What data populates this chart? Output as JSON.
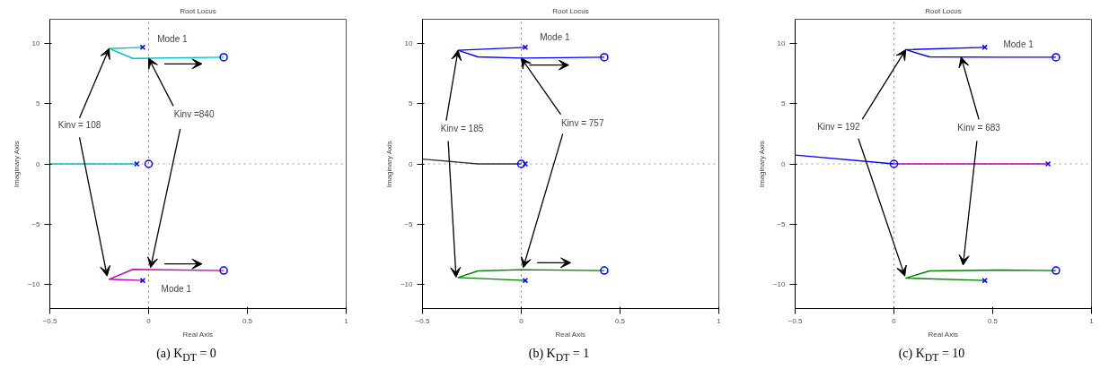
{
  "chart_data": [
    {
      "type": "line",
      "title": "Root Locus",
      "xlabel": "Real Axis",
      "ylabel": "Imaginary Axis",
      "xlim": [
        -0.5,
        1
      ],
      "ylim": [
        -12,
        12
      ],
      "xticks": [
        -0.5,
        0,
        0.5,
        1
      ],
      "yticks": [
        -10,
        -5,
        0,
        5,
        10
      ],
      "grid": false,
      "ref_lines": [
        {
          "axis": "x",
          "value": 0,
          "line_style": "dotted",
          "color": "#7a7a7a"
        },
        {
          "axis": "y",
          "value": 0,
          "line_style": "dotted",
          "color": "#999999"
        }
      ],
      "annotations": [
        "(a) K$_{DT}$ = 0",
        "Mode 1",
        "Mode 1",
        {
          "text": "Kinv = 108",
          "x": -0.2,
          "y": 9.57
        },
        {
          "text": "Kinv =840",
          "x": 0,
          "y": 8.77
        }
      ],
      "series": [
        {
          "color": "#00bfbf",
          "x": [
            -0.03,
            -0.2,
            -0.08,
            0.38
          ],
          "values": [
            9.67,
            9.57,
            8.75,
            8.85
          ]
        },
        {
          "color": "#bf00bf",
          "x": [
            -0.03,
            -0.2,
            -0.08,
            0.38
          ],
          "values": [
            -9.67,
            -9.57,
            -8.75,
            -8.85
          ]
        },
        {
          "color": "#00bfbf",
          "x": [
            -0.5,
            -0.06
          ],
          "values": [
            0,
            0
          ]
        },
        {
          "type": "scatter",
          "marker": "cross",
          "color": "#0000ff",
          "x": [
            -0.03,
            -0.03,
            -0.06
          ],
          "values": [
            9.67,
            -9.67,
            0
          ]
        },
        {
          "type": "scatter",
          "marker": "circle",
          "color": "#0000ff",
          "x": [
            0.38,
            0.38,
            0
          ],
          "values": [
            8.85,
            -8.85,
            0
          ]
        }
      ]
    },
    {
      "type": "line",
      "title": "Root Locus",
      "xlabel": "Real Axis",
      "ylabel": "Imaginary Axis",
      "xlim": [
        -0.5,
        1
      ],
      "ylim": [
        -12,
        12
      ],
      "xticks": [
        -0.5,
        0,
        0.5,
        1
      ],
      "yticks": [
        -10,
        -5,
        0,
        5,
        10
      ],
      "grid": false,
      "ref_lines": [
        {
          "axis": "x",
          "value": 0,
          "line_style": "dotted",
          "color": "#7a7a7a"
        },
        {
          "axis": "y",
          "value": 0,
          "line_style": "dotted",
          "color": "#999999"
        }
      ],
      "annotations": [
        "(b) K$_{DT}$ = 1",
        "Mode 1",
        {
          "text": "Kinv = 185",
          "x": -0.32,
          "y": 9.43
        },
        {
          "text": "Kinv = 757",
          "x": 0,
          "y": 8.78
        }
      ],
      "series": [
        {
          "color": "#0000ff",
          "x": [
            0.02,
            -0.32,
            -0.22,
            0,
            0.42
          ],
          "values": [
            9.67,
            9.43,
            8.88,
            8.78,
            8.85
          ]
        },
        {
          "color": "#008000",
          "x": [
            0.02,
            -0.32,
            -0.22,
            0,
            0.42
          ],
          "values": [
            -9.67,
            -9.43,
            -8.88,
            -8.78,
            -8.85
          ]
        },
        {
          "color": "#333333",
          "x": [
            -0.5,
            -0.22,
            0
          ],
          "values": [
            0.4,
            0,
            0
          ]
        },
        {
          "type": "scatter",
          "marker": "cross",
          "color": "#0000ff",
          "x": [
            0.02,
            0.02,
            0.02
          ],
          "values": [
            9.67,
            -9.67,
            0
          ]
        },
        {
          "type": "scatter",
          "marker": "circle",
          "color": "#0000ff",
          "x": [
            0.42,
            0.42,
            0
          ],
          "values": [
            8.85,
            -8.85,
            0
          ]
        }
      ]
    },
    {
      "type": "line",
      "title": "Root Locus",
      "xlabel": "Real Axis",
      "ylabel": "Imaginary Axis",
      "xlim": [
        -0.5,
        1
      ],
      "ylim": [
        -12,
        12
      ],
      "xticks": [
        -0.5,
        0,
        0.5,
        1
      ],
      "yticks": [
        -10,
        -5,
        0,
        5,
        10
      ],
      "grid": false,
      "ref_lines": [
        {
          "axis": "x",
          "value": 0,
          "line_style": "dotted",
          "color": "#7a7a7a"
        },
        {
          "axis": "y",
          "value": 0,
          "line_style": "dotted",
          "color": "#999999"
        }
      ],
      "annotations": [
        "(c) K$_{DT}$ = 10",
        "Mode 1",
        {
          "text": "Kinv = 192",
          "x": 0.06,
          "y": 9.48
        },
        {
          "text": "Kinv = 683",
          "x": 0.34,
          "y": 8.86
        }
      ],
      "series": [
        {
          "color": "#0000ff",
          "x": [
            0.46,
            0.06,
            0.18,
            0.54,
            0.82
          ],
          "values": [
            9.67,
            9.48,
            8.88,
            8.85,
            8.85
          ]
        },
        {
          "color": "#008000",
          "x": [
            0.46,
            0.06,
            0.18,
            0.54,
            0.82
          ],
          "values": [
            -9.67,
            -9.48,
            -8.88,
            -8.8,
            -8.85
          ]
        },
        {
          "color": "#0000ff",
          "x": [
            -0.5,
            0
          ],
          "values": [
            0.73,
            0
          ]
        },
        {
          "color": "#bf00bf",
          "x": [
            0,
            0.78
          ],
          "values": [
            0,
            0
          ]
        },
        {
          "type": "scatter",
          "marker": "cross",
          "color": "#0000ff",
          "x": [
            0.46,
            0.46,
            0.78
          ],
          "values": [
            9.67,
            -9.67,
            0
          ]
        },
        {
          "type": "scatter",
          "marker": "circle",
          "color": "#0000ff",
          "x": [
            0.82,
            0.82,
            0
          ],
          "values": [
            8.85,
            -8.85,
            0
          ]
        }
      ]
    }
  ]
}
